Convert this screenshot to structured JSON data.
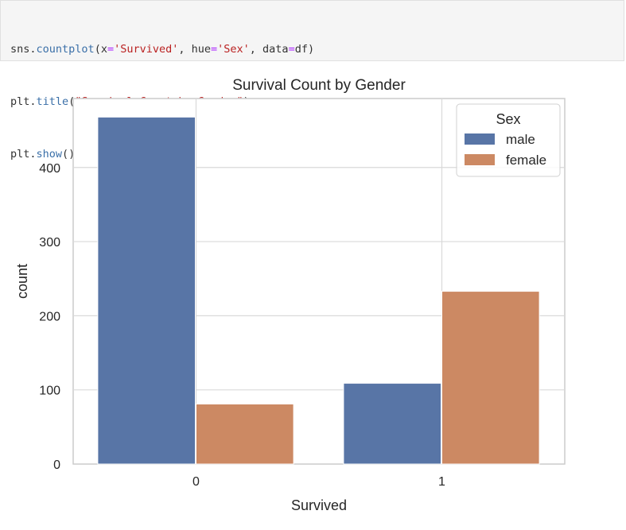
{
  "code_cell": {
    "line1": {
      "obj": "sns",
      "dot": ".",
      "fn": "countplot",
      "open": "(x",
      "eq1": "=",
      "arg1": "'Survived'",
      "sep1": ", hue",
      "eq2": "=",
      "arg2": "'Sex'",
      "sep2": ", data",
      "eq3": "=",
      "arg3": "df)"
    },
    "line2": {
      "obj": "plt",
      "dot": ".",
      "fn": "title",
      "open": "(",
      "arg": "\"Survival Count by Gender\"",
      "close": ")"
    },
    "line3": {
      "obj": "plt",
      "dot": ".",
      "fn": "show",
      "close": "()"
    }
  },
  "chart_data": {
    "type": "bar",
    "title": "Survival Count by Gender",
    "xlabel": "Survived",
    "ylabel": "count",
    "categories": [
      "0",
      "1"
    ],
    "series": [
      {
        "name": "male",
        "values": [
          468,
          109
        ],
        "color": "#5875a6"
      },
      {
        "name": "female",
        "values": [
          81,
          233
        ],
        "color": "#cc8963"
      }
    ],
    "ylim": [
      0,
      493
    ],
    "yticks": [
      0,
      100,
      200,
      300,
      400
    ],
    "grid": true,
    "legend": {
      "title": "Sex",
      "placement": "top-right"
    }
  }
}
